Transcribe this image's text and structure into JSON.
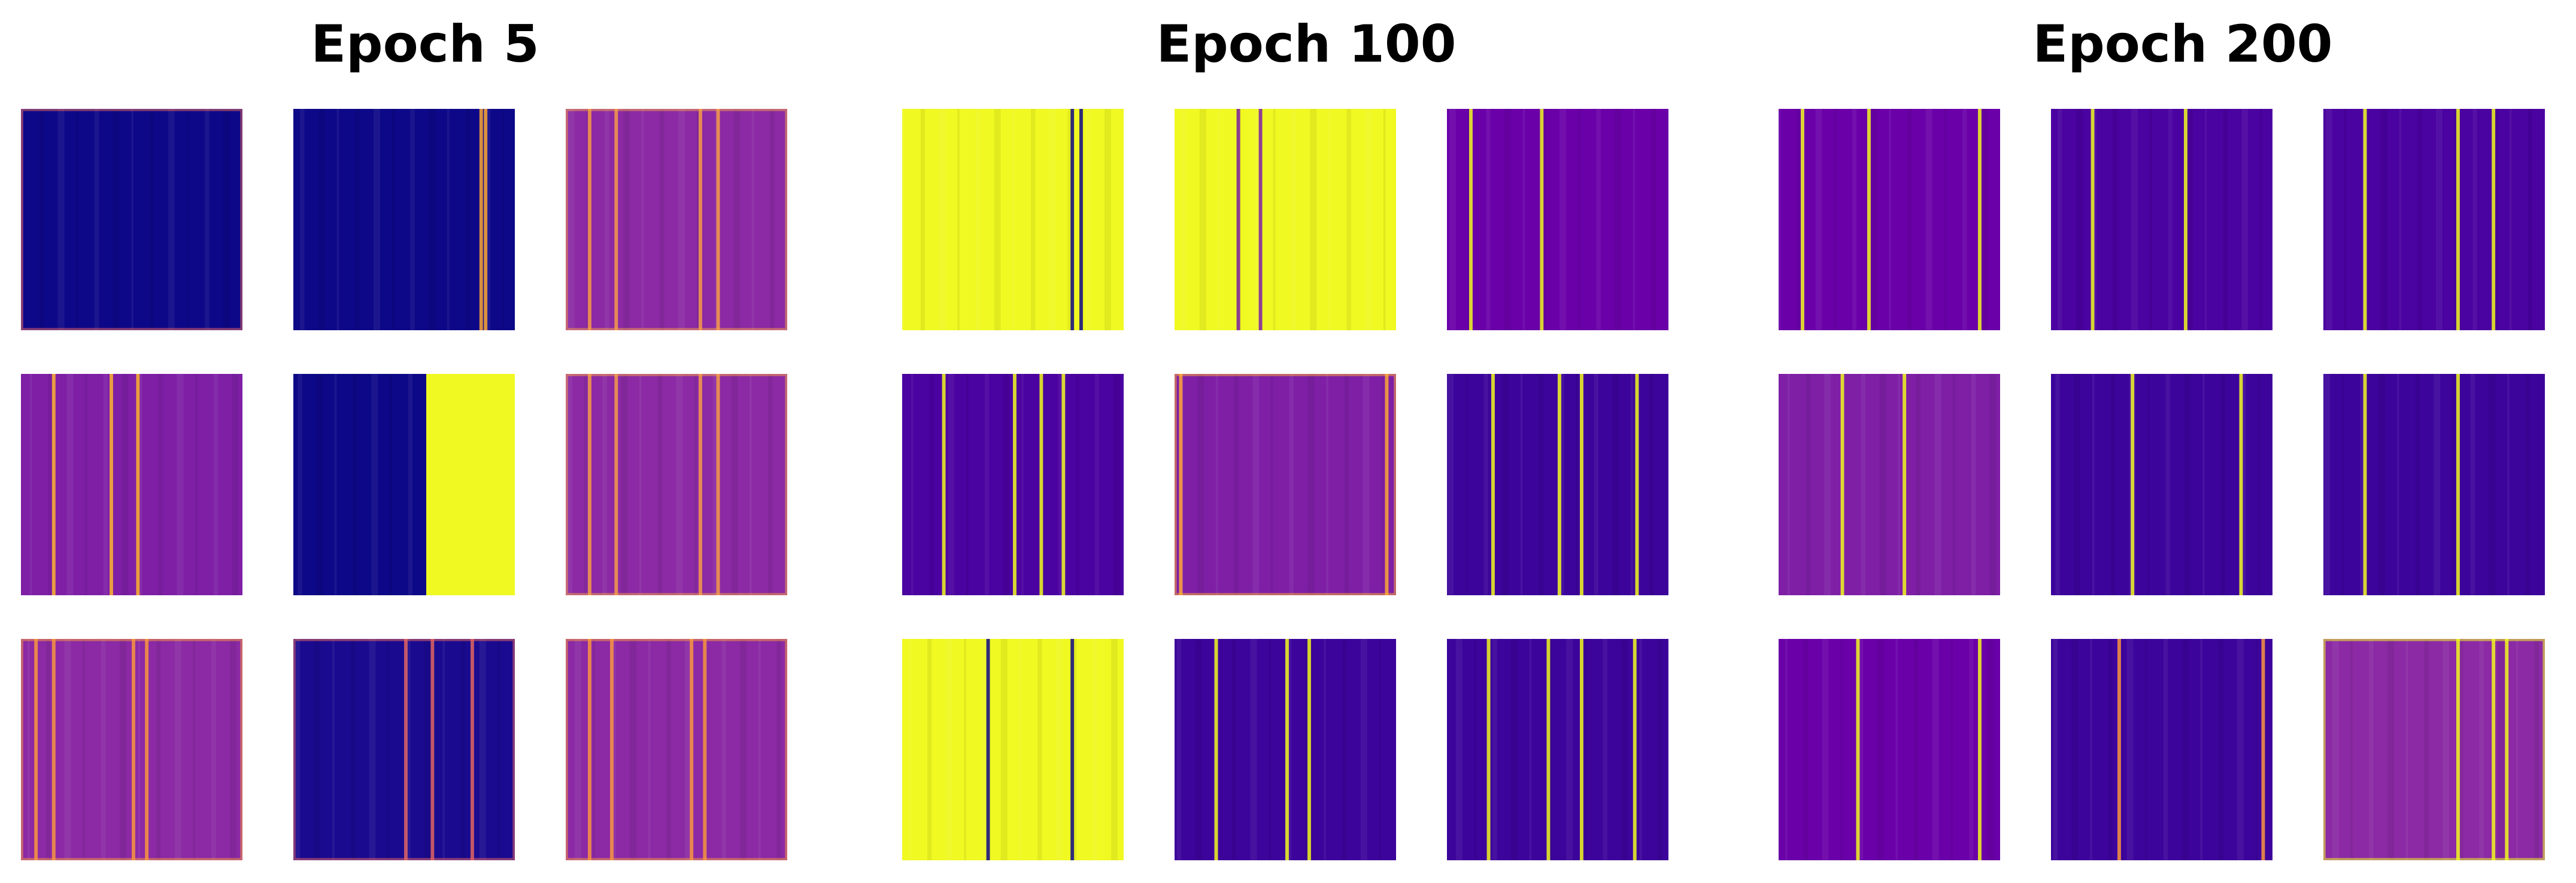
{
  "figure": {
    "groups": [
      {
        "title": "Epoch 5",
        "tiles": [
          {
            "base": "#0d0887",
            "accent": "#e16462",
            "stripes": [],
            "edge": true
          },
          {
            "base": "#0d0887",
            "accent": "#fca636",
            "stripes": [
              0.84,
              0.86
            ],
            "edge": false
          },
          {
            "base": "#8b2aa4",
            "accent": "#f49a4a",
            "stripes": [
              0.1,
              0.22,
              0.6,
              0.68
            ],
            "edge": true
          },
          {
            "base": "#7e1fa6",
            "accent": "#fdb32f",
            "stripes": [
              0.14,
              0.4,
              0.52
            ],
            "edge": false
          },
          {
            "base": "#0d0887",
            "accent": "#f0f921",
            "stripes": [
              0.62,
              0.66,
              0.7,
              0.9
            ],
            "block": [
              0.6,
              1.0
            ]
          },
          {
            "base": "#8b2aa4",
            "accent": "#f49a4a",
            "stripes": [
              0.1,
              0.22,
              0.6,
              0.68
            ],
            "edge": true
          },
          {
            "base": "#8b2aa4",
            "accent": "#f89540",
            "stripes": [
              0.06,
              0.14,
              0.5,
              0.56
            ],
            "edge": true
          },
          {
            "base": "#1a0a8f",
            "accent": "#e16462",
            "stripes": [
              0.5,
              0.62,
              0.8
            ],
            "edge": true
          },
          {
            "base": "#8b2aa4",
            "accent": "#f89540",
            "stripes": [
              0.1,
              0.2,
              0.56,
              0.62
            ],
            "edge": true
          }
        ]
      },
      {
        "title": "Epoch 100",
        "tiles": [
          {
            "base": "#f0f921",
            "accent": "#0d0887",
            "stripes": [
              0.76,
              0.8
            ],
            "edge": false
          },
          {
            "base": "#f0f921",
            "accent": "#7e1fa6",
            "stripes": [
              0.28,
              0.38
            ],
            "edge": false
          },
          {
            "base": "#6a00a8",
            "accent": "#f0f921",
            "stripes": [
              0.1,
              0.42
            ],
            "edge": false
          },
          {
            "base": "#4a02a0",
            "accent": "#f0f921",
            "stripes": [
              0.18,
              0.5,
              0.62,
              0.72
            ],
            "edge": false
          },
          {
            "base": "#7e1fa6",
            "accent": "#fca636",
            "stripes": [
              0.02,
              0.95
            ],
            "edge": true
          },
          {
            "base": "#3c049b",
            "accent": "#f0f921",
            "stripes": [
              0.2,
              0.5,
              0.6,
              0.85
            ],
            "edge": false
          },
          {
            "base": "#f0f921",
            "accent": "#0d0887",
            "stripes": [
              0.38,
              0.76
            ],
            "edge": false
          },
          {
            "base": "#3c049b",
            "accent": "#f0f921",
            "stripes": [
              0.18,
              0.5,
              0.6
            ],
            "edge": false
          },
          {
            "base": "#3c049b",
            "accent": "#f0f921",
            "stripes": [
              0.18,
              0.45,
              0.6,
              0.84
            ],
            "edge": false
          }
        ]
      },
      {
        "title": "Epoch 200",
        "tiles": [
          {
            "base": "#6a00a8",
            "accent": "#f0f921",
            "stripes": [
              0.1,
              0.4,
              0.9
            ],
            "edge": false
          },
          {
            "base": "#4a02a0",
            "accent": "#f0f921",
            "stripes": [
              0.18,
              0.6
            ],
            "edge": false
          },
          {
            "base": "#4a02a0",
            "accent": "#f0f921",
            "stripes": [
              0.18,
              0.6,
              0.76
            ],
            "edge": false
          },
          {
            "base": "#7e1fa6",
            "accent": "#f0f921",
            "stripes": [
              0.28,
              0.56
            ],
            "edge": false
          },
          {
            "base": "#3c049b",
            "accent": "#f0f921",
            "stripes": [
              0.36,
              0.85
            ],
            "edge": false
          },
          {
            "base": "#3c049b",
            "accent": "#f0f921",
            "stripes": [
              0.18,
              0.6
            ],
            "edge": false
          },
          {
            "base": "#6a00a8",
            "accent": "#f0f921",
            "stripes": [
              0.35,
              0.9
            ],
            "edge": false
          },
          {
            "base": "#3c049b",
            "accent": "#f89540",
            "stripes": [
              0.3,
              0.95
            ],
            "edge": false
          },
          {
            "base": "#8b2aa4",
            "accent": "#f0f921",
            "stripes": [
              0.6,
              0.76,
              0.82
            ],
            "edge": true
          }
        ]
      }
    ]
  }
}
